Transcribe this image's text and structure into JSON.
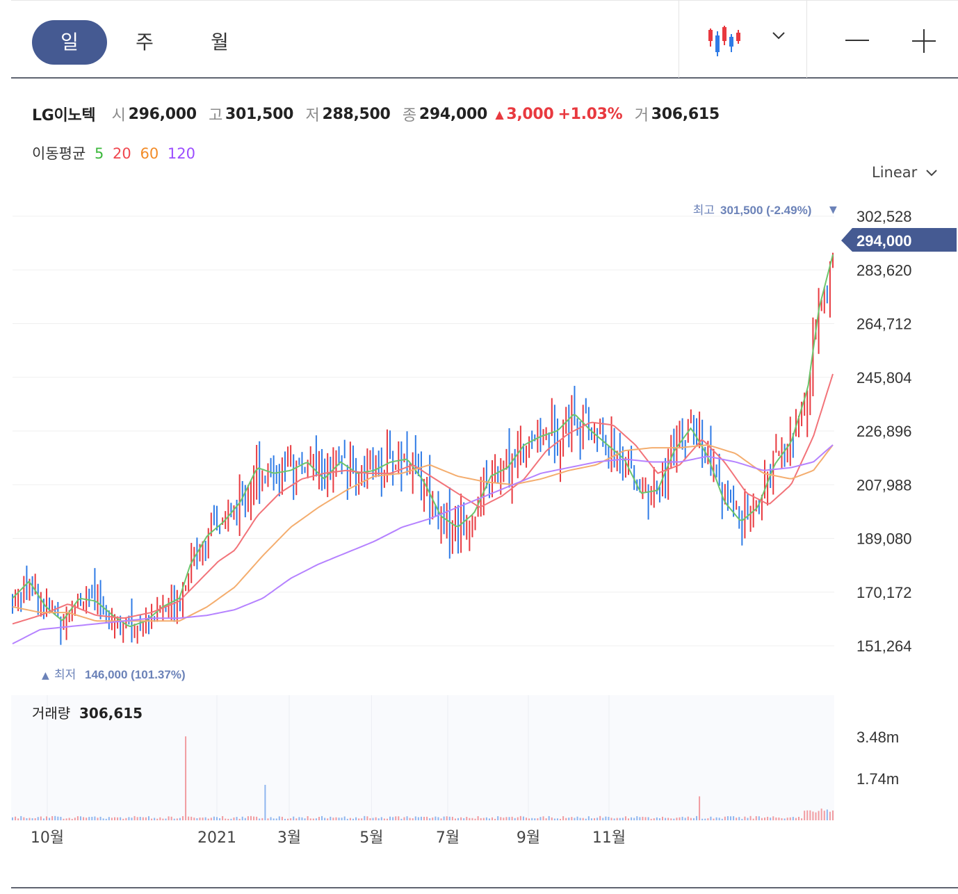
{
  "toolbar": {
    "tabs": [
      {
        "label": "일",
        "active": true
      },
      {
        "label": "주",
        "active": false
      },
      {
        "label": "월",
        "active": false
      }
    ],
    "chart_type_icon": "candlestick-icon",
    "dropdown_icon": "chevron-down-icon",
    "zoom_out_icon": "minus-icon",
    "zoom_in_icon": "plus-icon"
  },
  "quote": {
    "name": "LG이노텍",
    "open_label": "시",
    "open": "296,000",
    "high_label": "고",
    "high": "301,500",
    "low_label": "저",
    "low": "288,500",
    "close_label": "종",
    "close": "294,000",
    "change_arrow": "▲",
    "change": "3,000",
    "change_pct": "+1.03%",
    "volume_label": "거",
    "volume": "306,615"
  },
  "moving_average": {
    "label": "이동평균",
    "periods": [
      {
        "label": "5",
        "color": "#3cb83c"
      },
      {
        "label": "20",
        "color": "#f0474f"
      },
      {
        "label": "60",
        "color": "#f28c28"
      },
      {
        "label": "120",
        "color": "#9b4dff"
      }
    ]
  },
  "scale": {
    "label": "Linear",
    "icon": "chevron-down-icon"
  },
  "colors": {
    "up": "#e8393f",
    "down": "#2f7be6",
    "accent": "#455a92",
    "marker": "#6b82b8"
  },
  "chart_data": {
    "type": "candlestick",
    "price_ticks": [
      "302,528",
      "283,620",
      "264,712",
      "245,804",
      "226,896",
      "207,988",
      "189,080",
      "170,172",
      "151,264"
    ],
    "price_tick_values": [
      302528,
      283620,
      264712,
      245804,
      226896,
      207988,
      189080,
      170172,
      151264
    ],
    "ylim": [
      151264,
      302528
    ],
    "current_price_label": "294,000",
    "current_price": 294000,
    "high_marker": {
      "label": "최고",
      "value": "301,500 (-2.49%)",
      "arrow": "▼",
      "price": 301500
    },
    "low_marker": {
      "label": "최저",
      "value": "146,000 (101.37%)",
      "arrow": "▲",
      "price": 146000
    },
    "x_labels": [
      "10월",
      "2021",
      "3월",
      "5월",
      "7월",
      "9월",
      "11월"
    ],
    "volume": {
      "label": "거래량",
      "value": "306,615",
      "ticks": [
        "3.48m",
        "1.74m"
      ],
      "tick_values": [
        3480000,
        1740000
      ],
      "spikes": [
        {
          "month_index": 3.12,
          "value": 3500000
        },
        {
          "month_index": 4.55,
          "value": 1480000
        },
        {
          "month_index": 12.35,
          "value": 1000000
        }
      ]
    },
    "series": [
      {
        "name": "5",
        "points": [
          [
            0,
            168000
          ],
          [
            0.3,
            174000
          ],
          [
            0.6,
            165000
          ],
          [
            0.9,
            160000
          ],
          [
            1.2,
            168000
          ],
          [
            1.5,
            167000
          ],
          [
            1.8,
            162000
          ],
          [
            2.1,
            158000
          ],
          [
            2.4,
            160000
          ],
          [
            2.7,
            165000
          ],
          [
            3.0,
            168000
          ],
          [
            3.2,
            180000
          ],
          [
            3.5,
            190000
          ],
          [
            3.8,
            195000
          ],
          [
            4.1,
            202000
          ],
          [
            4.4,
            214000
          ],
          [
            4.7,
            212000
          ],
          [
            5.0,
            213000
          ],
          [
            5.3,
            216000
          ],
          [
            5.6,
            210000
          ],
          [
            5.9,
            216000
          ],
          [
            6.2,
            212000
          ],
          [
            6.5,
            213000
          ],
          [
            6.8,
            216000
          ],
          [
            7.1,
            217000
          ],
          [
            7.4,
            209000
          ],
          [
            7.7,
            197000
          ],
          [
            8.0,
            193000
          ],
          [
            8.3,
            198000
          ],
          [
            8.6,
            211000
          ],
          [
            8.9,
            214000
          ],
          [
            9.2,
            222000
          ],
          [
            9.5,
            225000
          ],
          [
            9.8,
            227000
          ],
          [
            10.1,
            233000
          ],
          [
            10.4,
            227000
          ],
          [
            10.7,
            222000
          ],
          [
            11.0,
            217000
          ],
          [
            11.3,
            205000
          ],
          [
            11.6,
            206000
          ],
          [
            11.9,
            220000
          ],
          [
            12.2,
            228000
          ],
          [
            12.5,
            218000
          ],
          [
            12.8,
            202000
          ],
          [
            13.1,
            195000
          ],
          [
            13.4,
            200000
          ],
          [
            13.7,
            215000
          ],
          [
            14.0,
            223000
          ],
          [
            14.3,
            242000
          ],
          [
            14.5,
            270000
          ],
          [
            14.75,
            289000
          ]
        ]
      },
      {
        "name": "20",
        "points": [
          [
            0,
            159000
          ],
          [
            0.5,
            162000
          ],
          [
            1.0,
            166000
          ],
          [
            1.5,
            162000
          ],
          [
            2.0,
            161000
          ],
          [
            2.5,
            163000
          ],
          [
            3.0,
            167000
          ],
          [
            3.3,
            173000
          ],
          [
            3.7,
            181000
          ],
          [
            4.0,
            185000
          ],
          [
            4.4,
            197000
          ],
          [
            4.8,
            205000
          ],
          [
            5.2,
            210000
          ],
          [
            5.6,
            212000
          ],
          [
            6.0,
            213000
          ],
          [
            6.4,
            212000
          ],
          [
            6.8,
            212000
          ],
          [
            7.2,
            215000
          ],
          [
            7.6,
            210000
          ],
          [
            8.0,
            205000
          ],
          [
            8.4,
            200000
          ],
          [
            8.8,
            204000
          ],
          [
            9.2,
            210000
          ],
          [
            9.6,
            220000
          ],
          [
            10.0,
            226000
          ],
          [
            10.4,
            230000
          ],
          [
            10.8,
            229000
          ],
          [
            11.2,
            222000
          ],
          [
            11.6,
            212000
          ],
          [
            12.0,
            215000
          ],
          [
            12.4,
            224000
          ],
          [
            12.8,
            216000
          ],
          [
            13.2,
            205000
          ],
          [
            13.6,
            201000
          ],
          [
            14.0,
            208000
          ],
          [
            14.4,
            225000
          ],
          [
            14.75,
            247000
          ]
        ]
      },
      {
        "name": "60",
        "points": [
          [
            0,
            165000
          ],
          [
            0.5,
            163000
          ],
          [
            1.0,
            163000
          ],
          [
            1.5,
            160000
          ],
          [
            2.0,
            160000
          ],
          [
            2.5,
            160000
          ],
          [
            3.0,
            160000
          ],
          [
            3.5,
            165000
          ],
          [
            4.0,
            172000
          ],
          [
            4.5,
            183000
          ],
          [
            5.0,
            193000
          ],
          [
            5.5,
            200000
          ],
          [
            6.0,
            206000
          ],
          [
            6.5,
            211000
          ],
          [
            7.0,
            212000
          ],
          [
            7.5,
            215000
          ],
          [
            8.0,
            211000
          ],
          [
            8.5,
            209000
          ],
          [
            9.0,
            208000
          ],
          [
            9.5,
            210000
          ],
          [
            10.0,
            213000
          ],
          [
            10.5,
            215000
          ],
          [
            11.0,
            220000
          ],
          [
            11.5,
            221000
          ],
          [
            12.0,
            221000
          ],
          [
            12.5,
            222000
          ],
          [
            13.0,
            219000
          ],
          [
            13.5,
            212000
          ],
          [
            14.0,
            210000
          ],
          [
            14.4,
            213000
          ],
          [
            14.75,
            222000
          ]
        ]
      },
      {
        "name": "120",
        "points": [
          [
            0,
            152000
          ],
          [
            0.5,
            157000
          ],
          [
            1.0,
            158000
          ],
          [
            1.5,
            159000
          ],
          [
            2.0,
            160000
          ],
          [
            2.5,
            161000
          ],
          [
            3.0,
            161000
          ],
          [
            3.5,
            162000
          ],
          [
            4.0,
            164000
          ],
          [
            4.5,
            168000
          ],
          [
            5.0,
            175000
          ],
          [
            5.5,
            180000
          ],
          [
            6.0,
            184000
          ],
          [
            6.5,
            188000
          ],
          [
            7.0,
            193000
          ],
          [
            7.5,
            196000
          ],
          [
            8.0,
            200000
          ],
          [
            8.5,
            204000
          ],
          [
            9.0,
            208000
          ],
          [
            9.5,
            212000
          ],
          [
            10.0,
            214000
          ],
          [
            10.5,
            216000
          ],
          [
            11.0,
            217000
          ],
          [
            11.5,
            216000
          ],
          [
            12.0,
            216000
          ],
          [
            12.5,
            218000
          ],
          [
            13.0,
            216000
          ],
          [
            13.5,
            213000
          ],
          [
            14.0,
            214000
          ],
          [
            14.4,
            216000
          ],
          [
            14.75,
            222000
          ]
        ]
      }
    ]
  }
}
